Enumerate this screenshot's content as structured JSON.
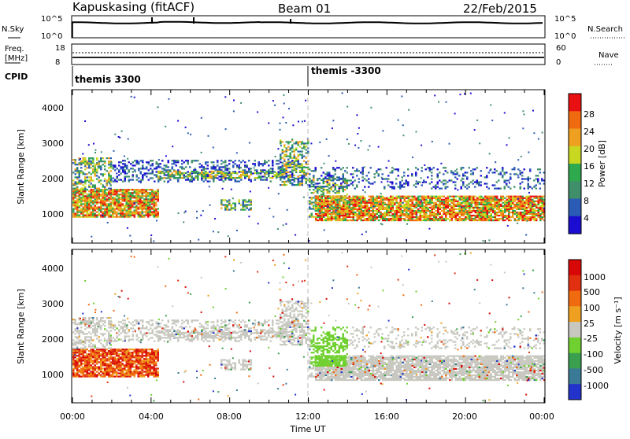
{
  "header": {
    "station": "Kapuskasing (fitACF)",
    "beam": "Beam 01",
    "date": "22/Feb/2015"
  },
  "sky_panel": {
    "left_label": "N.Sky",
    "left_ticks": [
      "10^5",
      "10^0"
    ],
    "right_ticks": [
      "10^5",
      "10^0"
    ],
    "right_label": "N.Search"
  },
  "freq_panel": {
    "left_label_1": "Freq.",
    "left_label_2": "[MHz]",
    "left_ticks": [
      "18",
      "8"
    ],
    "right_ticks": [
      "60",
      "0"
    ],
    "right_label": "Nave"
  },
  "cpid": {
    "label": "CPID",
    "left_mode": "themis 3300",
    "right_mode": "themis -3300"
  },
  "chart_data": [
    {
      "type": "heatmap",
      "quantity": "Power",
      "xlabel": "",
      "ylabel": "Slant Range [km]",
      "y_ticks": [
        "1000",
        "2000",
        "3000",
        "4000"
      ],
      "colorbar_label": "Power [dB]",
      "colorbar_ticks": [
        "4",
        "8",
        "12",
        "16",
        "20",
        "24",
        "28"
      ],
      "colors": [
        "#1a0dd1",
        "#2a5bb5",
        "#3f8f6a",
        "#2fa94d",
        "#c8d820",
        "#f0a020",
        "#f06a10",
        "#e81010"
      ]
    },
    {
      "type": "heatmap",
      "quantity": "Velocity",
      "xlabel": "Time UT",
      "ylabel": "Slant Range [km]",
      "y_ticks": [
        "1000",
        "2000",
        "3000",
        "4000"
      ],
      "x_ticks": [
        "00:00",
        "04:00",
        "08:00",
        "12:00",
        "16:00",
        "20:00",
        "00:00"
      ],
      "colorbar_label": "Velocity [m s⁻¹]",
      "colorbar_ticks": [
        "1000",
        "500",
        "100",
        "25",
        "-25",
        "-100",
        "-500",
        "-1000"
      ],
      "colors": [
        "#2233cc",
        "#3a7a96",
        "#3aa050",
        "#70d030",
        "#c8c8c0",
        "#f0a020",
        "#f06a10",
        "#e03010",
        "#d80808"
      ]
    }
  ]
}
